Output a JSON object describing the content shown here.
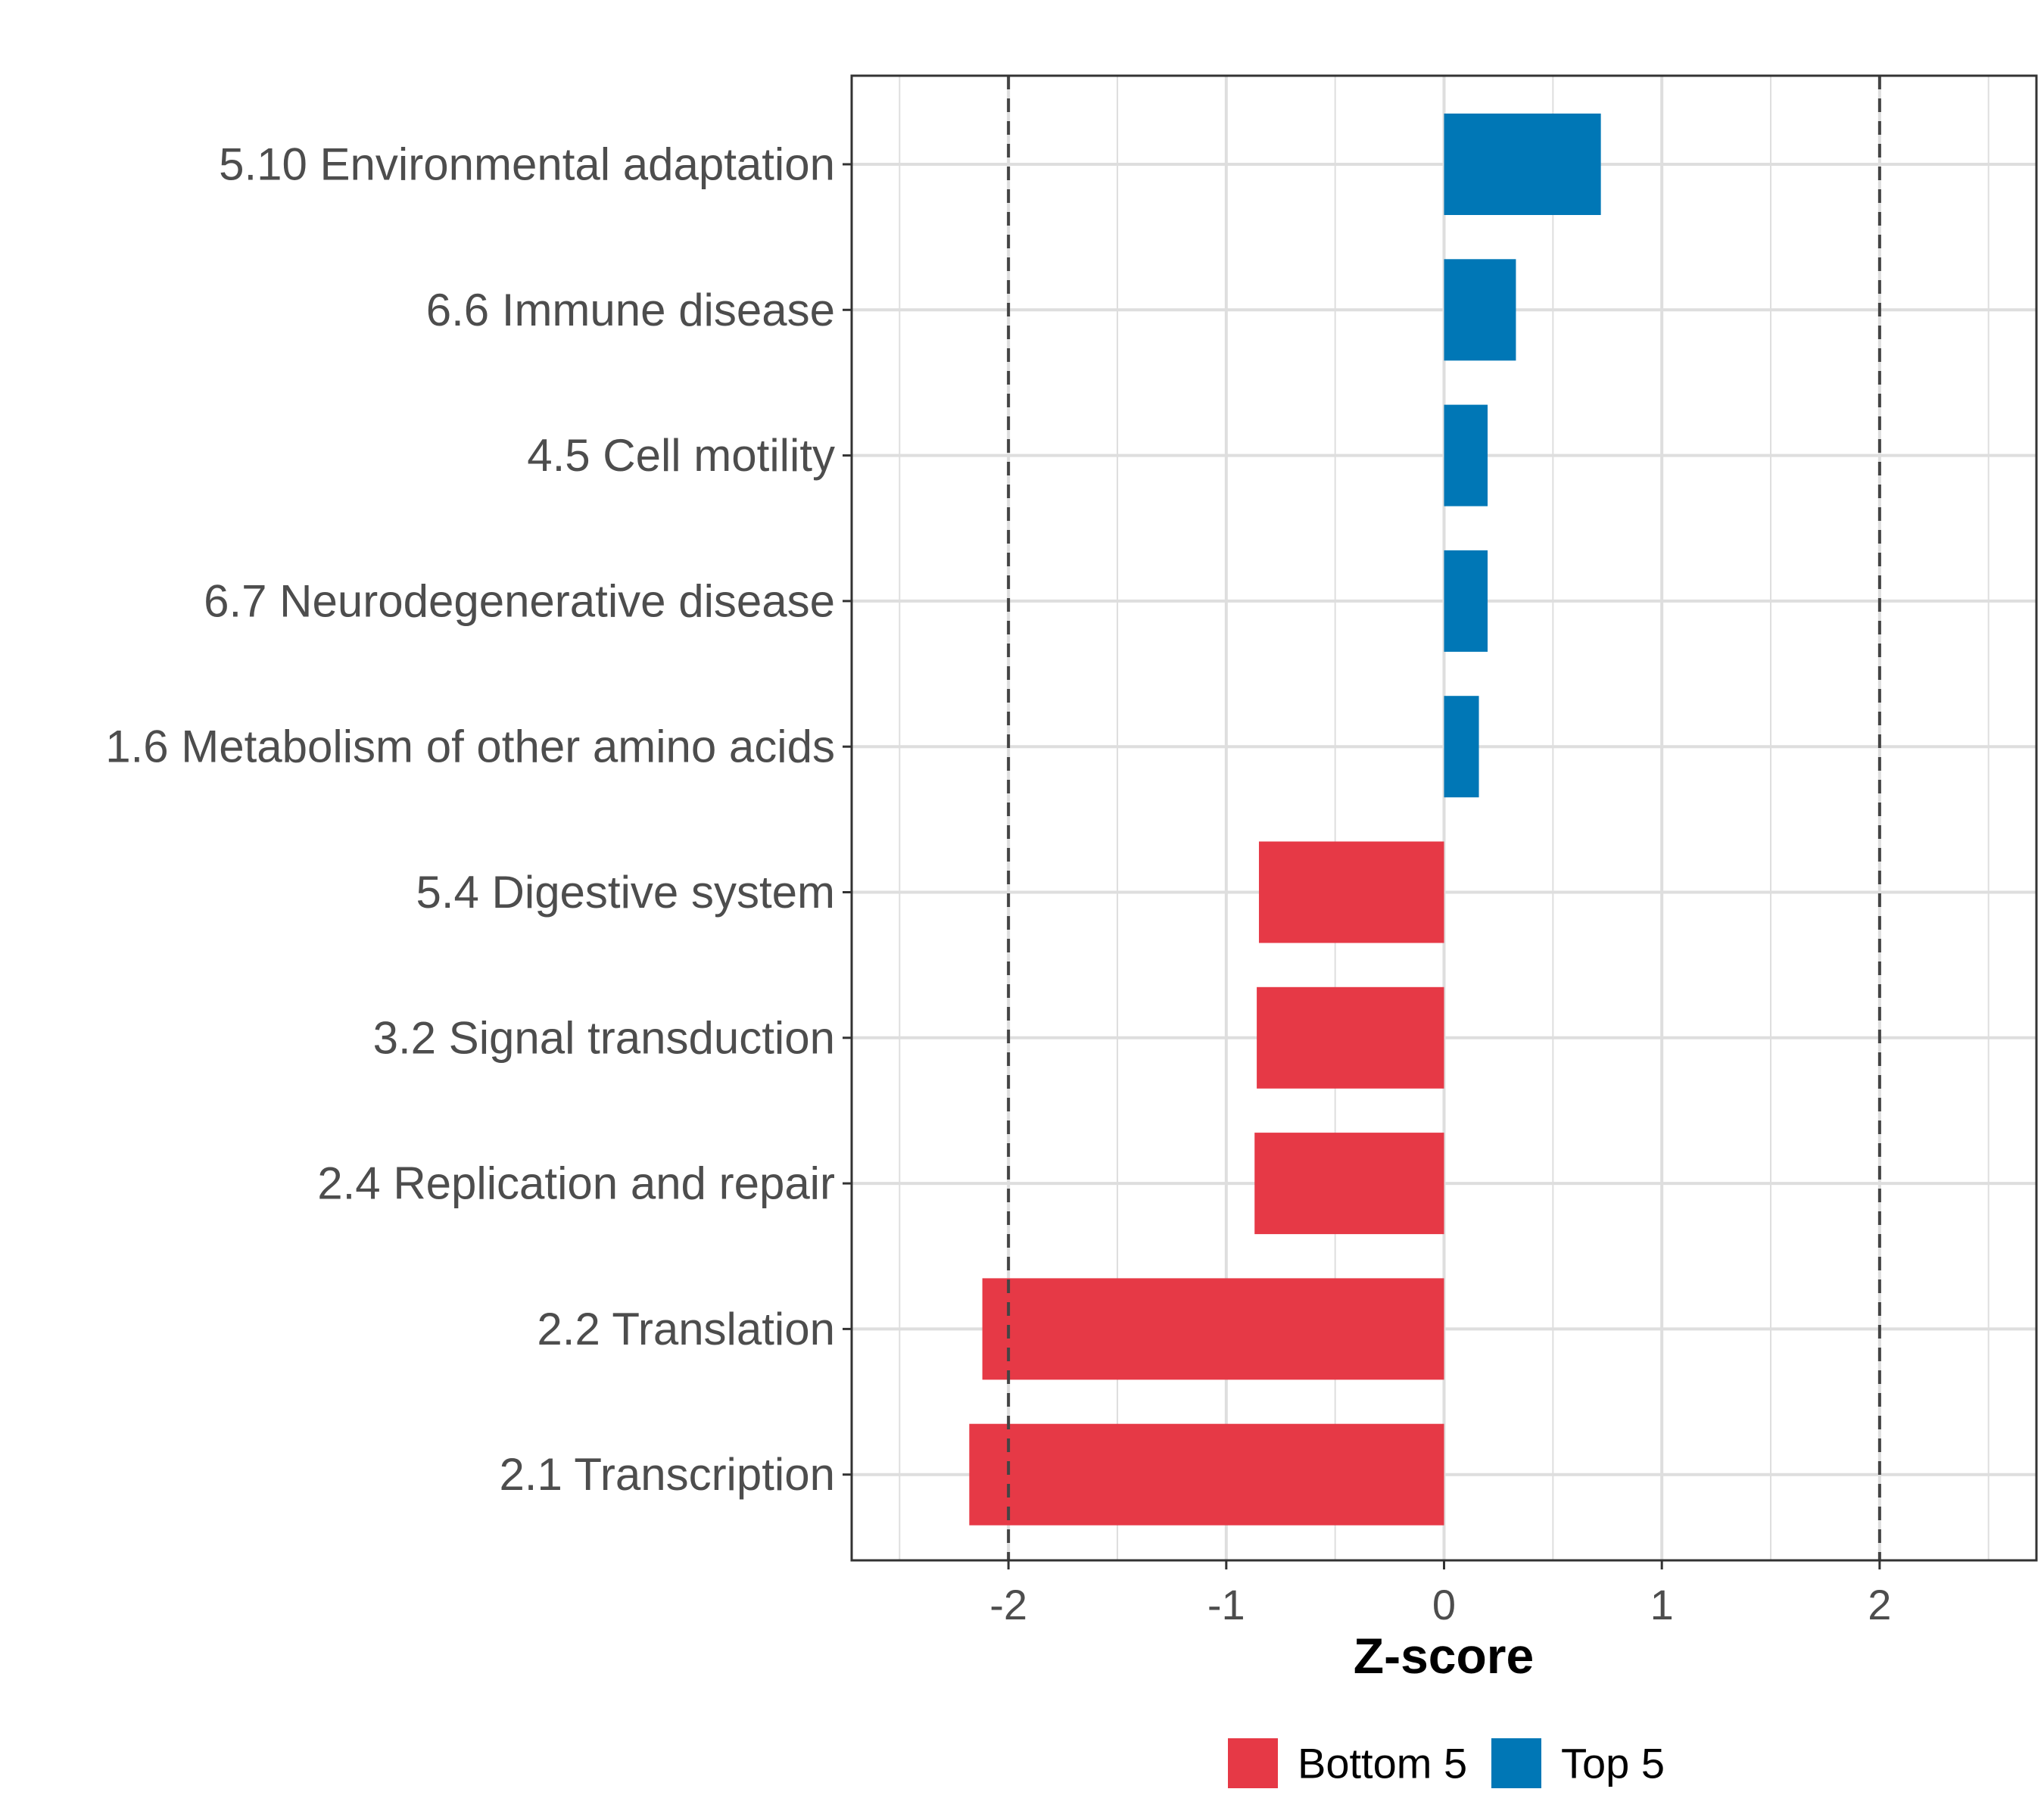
{
  "chart_data": {
    "type": "bar",
    "orientation": "horizontal",
    "title": "",
    "xlabel": "Z-score",
    "ylabel": "",
    "xlim": [
      -2.72,
      2.72
    ],
    "xticks": [
      -2,
      -1,
      0,
      1,
      2
    ],
    "xtick_labels": [
      "-2",
      "-1",
      "0",
      "1",
      "2"
    ],
    "reference_lines": [
      -2,
      2
    ],
    "grid": true,
    "legend_position": "bottom",
    "categories": [
      "5.10 Environmental adaptation",
      "6.6 Immune disease",
      "4.5 Cell motility",
      "6.7 Neurodegenerative disease",
      "1.6 Metabolism of other amino acids",
      "5.4 Digestive system",
      "3.2 Signal transduction",
      "2.4 Replication and repair",
      "2.2 Translation",
      "2.1 Transcription"
    ],
    "values": [
      0.72,
      0.33,
      0.2,
      0.2,
      0.16,
      -0.85,
      -0.86,
      -0.87,
      -2.12,
      -2.18
    ],
    "groups": [
      "Top 5",
      "Top 5",
      "Top 5",
      "Top 5",
      "Top 5",
      "Bottom 5",
      "Bottom 5",
      "Bottom 5",
      "Bottom 5",
      "Bottom 5"
    ],
    "legend": [
      {
        "name": "Bottom 5",
        "color": "#e63946"
      },
      {
        "name": "Top 5",
        "color": "#0077b6"
      }
    ]
  }
}
